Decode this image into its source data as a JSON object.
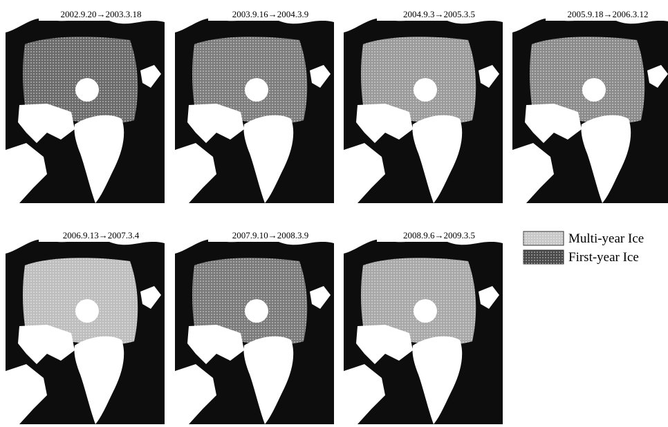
{
  "panels": [
    {
      "label": "2002.9.20→2003.3.18"
    },
    {
      "label": "2003.9.16→2004.3.9"
    },
    {
      "label": "2004.9.3→2005.3.5"
    },
    {
      "label": "2005.9.18→2006.3.12"
    },
    {
      "label": "2006.9.13→2007.3.4"
    },
    {
      "label": "2007.9.10→2008.3.9"
    },
    {
      "label": "2008.9.6→2009.3.5"
    }
  ],
  "legend": [
    {
      "label": "Multi-year Ice"
    },
    {
      "label": "First-year Ice"
    }
  ]
}
